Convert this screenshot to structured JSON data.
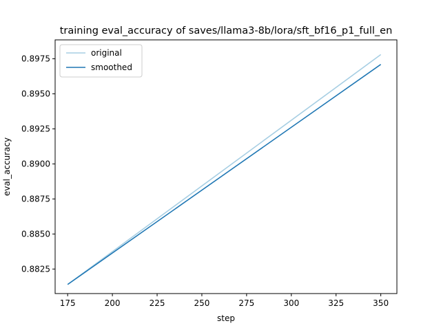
{
  "chart_data": {
    "type": "line",
    "title": "training eval_accuracy of saves/llama3-8b/lora/sft_bf16_p1_full_en",
    "xlabel": "step",
    "ylabel": "eval_accuracy",
    "xlim": [
      168.0,
      359.0
    ],
    "ylim": [
      0.88075,
      0.89885
    ],
    "xticks": [
      175,
      200,
      225,
      250,
      275,
      300,
      325,
      350
    ],
    "yticks": [
      0.8825,
      0.885,
      0.8875,
      0.89,
      0.8925,
      0.895,
      0.8975
    ],
    "ytick_labels": [
      "0.8825",
      "0.8850",
      "0.8875",
      "0.8900",
      "0.8925",
      "0.8950",
      "0.8975"
    ],
    "legend_position": "upper-left",
    "grid": false,
    "series": [
      {
        "name": "original",
        "color": "#a6cee3",
        "x": [
          175,
          350
        ],
        "y": [
          0.8814,
          0.8978
        ]
      },
      {
        "name": "smoothed",
        "color": "#1f77b4",
        "x": [
          175,
          350
        ],
        "y": [
          0.8814,
          0.8971
        ]
      }
    ]
  }
}
